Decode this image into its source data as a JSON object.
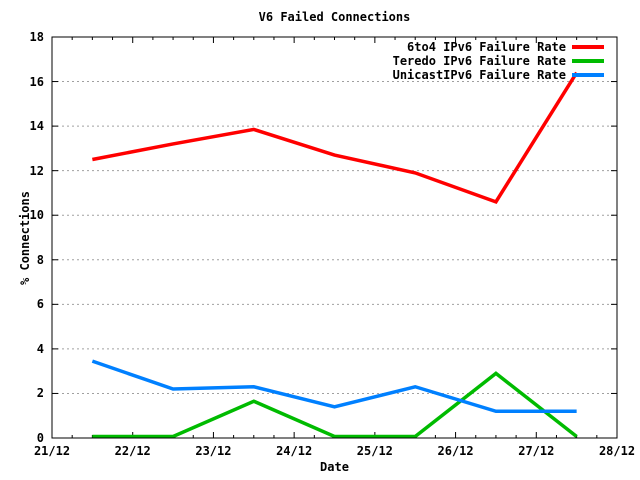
{
  "title": "V6 Failed Connections",
  "colors": {
    "background": "#ffffff",
    "axis": "#000000",
    "grid": "#a0a0a0",
    "series_6to4": "#ff0000",
    "series_teredo": "#00bb00",
    "series_unicast": "#0080ff"
  },
  "chart_data": {
    "type": "line",
    "title": "V6 Failed Connections",
    "xlabel": "Date",
    "ylabel": "% Connections",
    "grid": "horizontal dotted gridlines only",
    "legend_position": "top-right inside plot",
    "xlim_days": [
      0,
      7
    ],
    "ylim": [
      0,
      18
    ],
    "y_ticks": [
      0,
      2,
      4,
      6,
      8,
      10,
      12,
      14,
      16,
      18
    ],
    "x_tick_labels": [
      "21/12",
      "22/12",
      "23/12",
      "24/12",
      "25/12",
      "26/12",
      "27/12",
      "28/12"
    ],
    "minor_x_tick_step_days": 0.25,
    "x_days": [
      0.5,
      1.5,
      2.5,
      3.5,
      4.5,
      5.5,
      6.5
    ],
    "series": [
      {
        "name": "6to4 IPv6 Failure Rate",
        "color": "#ff0000",
        "values": [
          12.5,
          13.2,
          13.85,
          12.7,
          11.9,
          10.6,
          16.4
        ]
      },
      {
        "name": "Teredo IPv6 Failure Rate",
        "color": "#00bb00",
        "values": [
          0,
          0,
          1.65,
          0,
          0,
          2.9,
          0
        ]
      },
      {
        "name": "UnicastIPv6 Failure Rate",
        "color": "#0080ff",
        "values": [
          3.45,
          2.2,
          2.3,
          1.4,
          2.3,
          1.2,
          1.2
        ]
      }
    ]
  }
}
